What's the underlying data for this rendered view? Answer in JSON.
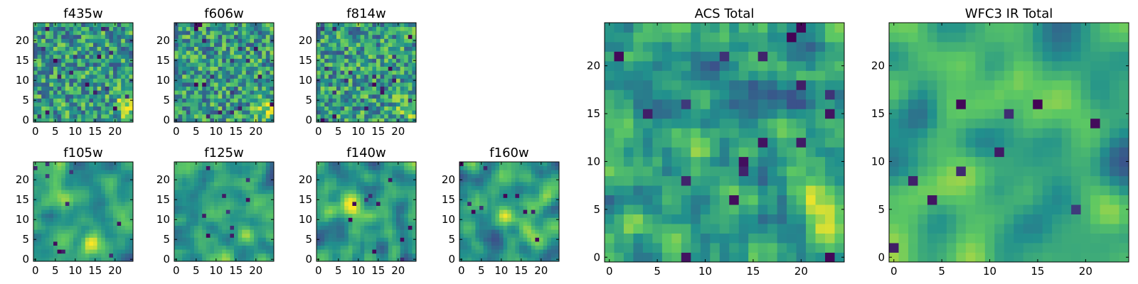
{
  "figure": {
    "description_type": "heatmap grid",
    "colormap": [
      "#440154",
      "#3b528b",
      "#21908d",
      "#5dc863",
      "#fde725"
    ]
  },
  "chart_data": [
    {
      "type": "heatmap",
      "title": "f435w",
      "grid_size": 25,
      "xlim": [
        -0.5,
        24.5
      ],
      "ylim": [
        -0.5,
        24.5
      ],
      "xticks": [
        0,
        5,
        10,
        15,
        20
      ],
      "yticks": [
        0,
        5,
        10,
        15,
        20
      ],
      "smoothness": 0.0,
      "seed": 11,
      "bright_spot": [
        23,
        3
      ]
    },
    {
      "type": "heatmap",
      "title": "f606w",
      "grid_size": 25,
      "xlim": [
        -0.5,
        24.5
      ],
      "ylim": [
        -0.5,
        24.5
      ],
      "xticks": [
        0,
        5,
        10,
        15,
        20
      ],
      "yticks": [
        0,
        5,
        10,
        15,
        20
      ],
      "smoothness": 0.0,
      "seed": 23,
      "bright_spot": [
        23,
        3
      ]
    },
    {
      "type": "heatmap",
      "title": "f814w",
      "grid_size": 25,
      "xlim": [
        -0.5,
        24.5
      ],
      "ylim": [
        -0.5,
        24.5
      ],
      "xticks": [
        0,
        5,
        10,
        15,
        20
      ],
      "yticks": [
        0,
        5,
        10,
        15,
        20
      ],
      "smoothness": 0.0,
      "seed": 37,
      "bright_spot": [
        23,
        4
      ]
    },
    {
      "type": "heatmap",
      "title": "f105w",
      "grid_size": 25,
      "xlim": [
        -0.5,
        24.5
      ],
      "ylim": [
        -0.5,
        24.5
      ],
      "xticks": [
        0,
        5,
        10,
        15,
        20
      ],
      "yticks": [
        0,
        5,
        10,
        15,
        20
      ],
      "smoothness": 0.6,
      "seed": 41,
      "bright_spot": [
        15,
        4
      ]
    },
    {
      "type": "heatmap",
      "title": "f125w",
      "grid_size": 25,
      "xlim": [
        -0.5,
        24.5
      ],
      "ylim": [
        -0.5,
        24.5
      ],
      "xticks": [
        0,
        5,
        10,
        15,
        20
      ],
      "yticks": [
        0,
        5,
        10,
        15,
        20
      ],
      "smoothness": 0.6,
      "seed": 53,
      "bright_spot": [
        18,
        6
      ]
    },
    {
      "type": "heatmap",
      "title": "f140w",
      "grid_size": 25,
      "xlim": [
        -0.5,
        24.5
      ],
      "ylim": [
        -0.5,
        24.5
      ],
      "xticks": [
        0,
        5,
        10,
        15,
        20
      ],
      "yticks": [
        0,
        5,
        10,
        15,
        20
      ],
      "smoothness": 0.6,
      "seed": 67,
      "bright_spot": [
        8,
        14
      ]
    },
    {
      "type": "heatmap",
      "title": "f160w",
      "grid_size": 25,
      "xlim": [
        -0.5,
        24.5
      ],
      "ylim": [
        -0.5,
        24.5
      ],
      "xticks": [
        0,
        5,
        10,
        15,
        20
      ],
      "yticks": [
        0,
        5,
        10,
        15,
        20
      ],
      "smoothness": 0.6,
      "seed": 79,
      "bright_spot": [
        12,
        11
      ]
    },
    {
      "type": "heatmap",
      "title": "ACS Total",
      "grid_size": 25,
      "xlim": [
        -0.5,
        24.5
      ],
      "ylim": [
        -0.5,
        24.5
      ],
      "xticks": [
        0,
        5,
        10,
        15,
        20
      ],
      "yticks": [
        0,
        5,
        10,
        15,
        20
      ],
      "smoothness": 0.2,
      "seed": 97,
      "bright_spot": [
        23,
        4
      ]
    },
    {
      "type": "heatmap",
      "title": "WFC3 IR Total",
      "grid_size": 25,
      "xlim": [
        -0.5,
        24.5
      ],
      "ylim": [
        -0.5,
        24.5
      ],
      "xticks": [
        0,
        5,
        10,
        15,
        20
      ],
      "yticks": [
        0,
        5,
        10,
        15,
        20
      ],
      "smoothness": 0.85,
      "seed": 113,
      "bright_spot": [
        23,
        5
      ]
    }
  ]
}
